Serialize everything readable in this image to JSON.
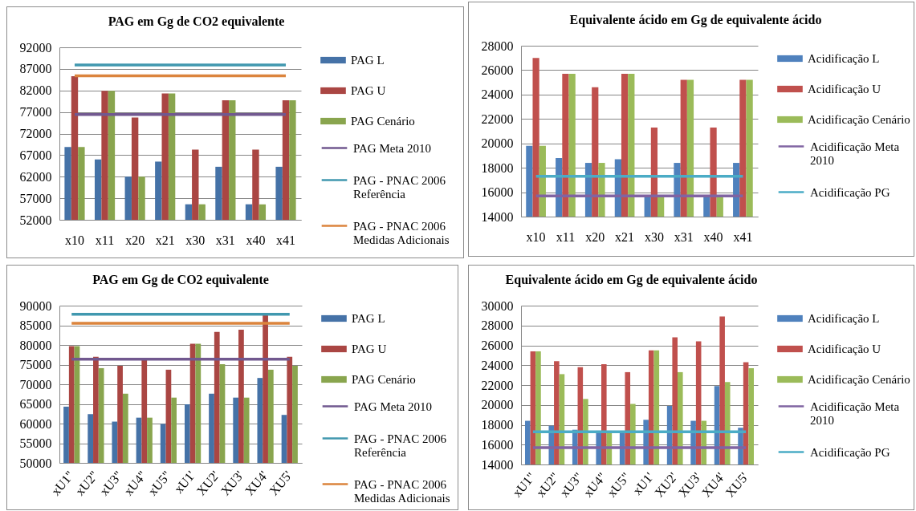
{
  "chart_data": [
    {
      "type": "bar",
      "title": "PAG em Gg de CO2 equivalente",
      "categories": [
        "x10",
        "x11",
        "x20",
        "x21",
        "x30",
        "x31",
        "x40",
        "x41"
      ],
      "series": [
        {
          "name": "PAG L",
          "color": "#4572a7",
          "values": [
            68900,
            66000,
            62000,
            65500,
            55600,
            64300,
            55600,
            64300
          ]
        },
        {
          "name": "PAG U",
          "color": "#aa4643",
          "values": [
            85300,
            81900,
            75700,
            81300,
            68300,
            79700,
            68300,
            79700
          ]
        },
        {
          "name": "PAG Cenário",
          "color": "#89a54e",
          "values": [
            68900,
            81900,
            62000,
            81300,
            55600,
            79700,
            55600,
            79700
          ]
        },
        {
          "name": "PAG Meta 2010",
          "type": "line",
          "color": "#71588f",
          "values": [
            76400,
            76400,
            76400,
            76400,
            76400,
            76400,
            76400,
            76400
          ]
        },
        {
          "name": "PAG - PNAC 2006 Referência",
          "type": "line",
          "color": "#4198af",
          "values": [
            87900,
            87900,
            87900,
            87900,
            87900,
            87900,
            87900,
            87900
          ]
        },
        {
          "name": "PAG - PNAC 2006 Medidas Adicionais",
          "type": "line",
          "color": "#db843d",
          "values": [
            85400,
            85400,
            85400,
            85400,
            85400,
            85400,
            85400,
            85400
          ]
        }
      ],
      "ylim": [
        52000,
        92000
      ],
      "yticks": [
        52000,
        57000,
        62000,
        67000,
        72000,
        77000,
        82000,
        87000,
        92000
      ],
      "grid": "y",
      "legend": "right"
    },
    {
      "type": "bar",
      "title": "Equivalente ácido em Gg de equivalente ácido",
      "categories": [
        "x10",
        "x11",
        "x20",
        "x21",
        "x30",
        "x31",
        "x40",
        "x41"
      ],
      "series": [
        {
          "name": "Acidificação L",
          "color": "#4f81bd",
          "values": [
            19800,
            18800,
            18400,
            18700,
            15700,
            18400,
            15700,
            18400
          ]
        },
        {
          "name": "Acidificação U",
          "color": "#c0504d",
          "values": [
            27000,
            25700,
            24600,
            25700,
            21300,
            25200,
            21300,
            25200
          ]
        },
        {
          "name": "Acidificação Cenário",
          "color": "#9bbb59",
          "values": [
            19800,
            25700,
            18400,
            25700,
            15700,
            25200,
            15700,
            25200
          ]
        },
        {
          "name": "Acidificação Meta 2010",
          "type": "line",
          "color": "#8064a2",
          "values": [
            15700,
            15700,
            15700,
            15700,
            15700,
            15700,
            15700,
            15700
          ]
        },
        {
          "name": "Acidificação PG",
          "type": "line",
          "color": "#4bacc6",
          "values": [
            17300,
            17300,
            17300,
            17300,
            17300,
            17300,
            17300,
            17300
          ]
        }
      ],
      "ylim": [
        14000,
        28000
      ],
      "yticks": [
        14000,
        16000,
        18000,
        20000,
        22000,
        24000,
        26000,
        28000
      ],
      "grid": "y",
      "legend": "right"
    },
    {
      "type": "bar",
      "title": "PAG em Gg de CO2 equivalente",
      "categories": [
        "xU1\"",
        "xU2\"",
        "xU3\"",
        "xU4\"",
        "xU5\"",
        "xU1'",
        "XU2'",
        "XU3'",
        "XU4'",
        "XU5'"
      ],
      "series": [
        {
          "name": "PAG L",
          "color": "#4572a7",
          "values": [
            64300,
            62400,
            60500,
            61500,
            59900,
            64900,
            67600,
            66600,
            71600,
            62200
          ]
        },
        {
          "name": "PAG U",
          "color": "#aa4643",
          "values": [
            79700,
            77000,
            74700,
            76700,
            73700,
            80300,
            83300,
            83900,
            87600,
            77000
          ]
        },
        {
          "name": "PAG Cenário",
          "color": "#89a54e",
          "values": [
            79700,
            74100,
            67600,
            61500,
            66600,
            80300,
            75100,
            66600,
            73700,
            74700
          ]
        },
        {
          "name": "PAG Meta 2010",
          "type": "line",
          "color": "#71588f",
          "values": [
            76400,
            76400,
            76400,
            76400,
            76400,
            76400,
            76400,
            76400,
            76400,
            76400
          ]
        },
        {
          "name": "PAG - PNAC 2006 Referência",
          "type": "line",
          "color": "#4198af",
          "values": [
            87800,
            87800,
            87800,
            87800,
            87800,
            87800,
            87800,
            87800,
            87800,
            87800
          ]
        },
        {
          "name": "PAG - PNAC 2006 Medidas Adicionais",
          "type": "line",
          "color": "#db843d",
          "values": [
            85500,
            85500,
            85500,
            85500,
            85500,
            85500,
            85500,
            85500,
            85500,
            85500
          ]
        }
      ],
      "ylim": [
        50000,
        90000
      ],
      "yticks": [
        50000,
        55000,
        60000,
        65000,
        70000,
        75000,
        80000,
        85000,
        90000
      ],
      "grid": "y",
      "legend": "right"
    },
    {
      "type": "bar",
      "title": "Equivalente ácido em Gg de equivalente ácido",
      "categories": [
        "xU1\"",
        "xU2\"",
        "xU3\"",
        "xU4\"",
        "xU5\"",
        "xU1'",
        "XU2'",
        "XU3'",
        "XU4'",
        "XU5'"
      ],
      "series": [
        {
          "name": "Acidificação L",
          "color": "#4f81bd",
          "values": [
            18400,
            17900,
            17500,
            17400,
            17200,
            18500,
            19900,
            18400,
            21900,
            17700
          ]
        },
        {
          "name": "Acidificação U",
          "color": "#c0504d",
          "values": [
            25400,
            24400,
            23800,
            24100,
            23300,
            25500,
            26800,
            26400,
            28900,
            24300
          ]
        },
        {
          "name": "Acidificação Cenário",
          "color": "#9bbb59",
          "values": [
            25400,
            23100,
            20600,
            17400,
            20100,
            25500,
            23300,
            18400,
            22300,
            23700
          ]
        },
        {
          "name": "Acidificação Meta 2010",
          "type": "line",
          "color": "#8064a2",
          "values": [
            15700,
            15700,
            15700,
            15700,
            15700,
            15700,
            15700,
            15700,
            15700,
            15700
          ]
        },
        {
          "name": "Acidificação PG",
          "type": "line",
          "color": "#4bacc6",
          "values": [
            17300,
            17300,
            17300,
            17300,
            17300,
            17300,
            17300,
            17300,
            17300,
            17300
          ]
        }
      ],
      "ylim": [
        14000,
        30000
      ],
      "yticks": [
        14000,
        16000,
        18000,
        20000,
        22000,
        24000,
        26000,
        28000,
        30000
      ],
      "grid": "y",
      "legend": "right"
    }
  ]
}
